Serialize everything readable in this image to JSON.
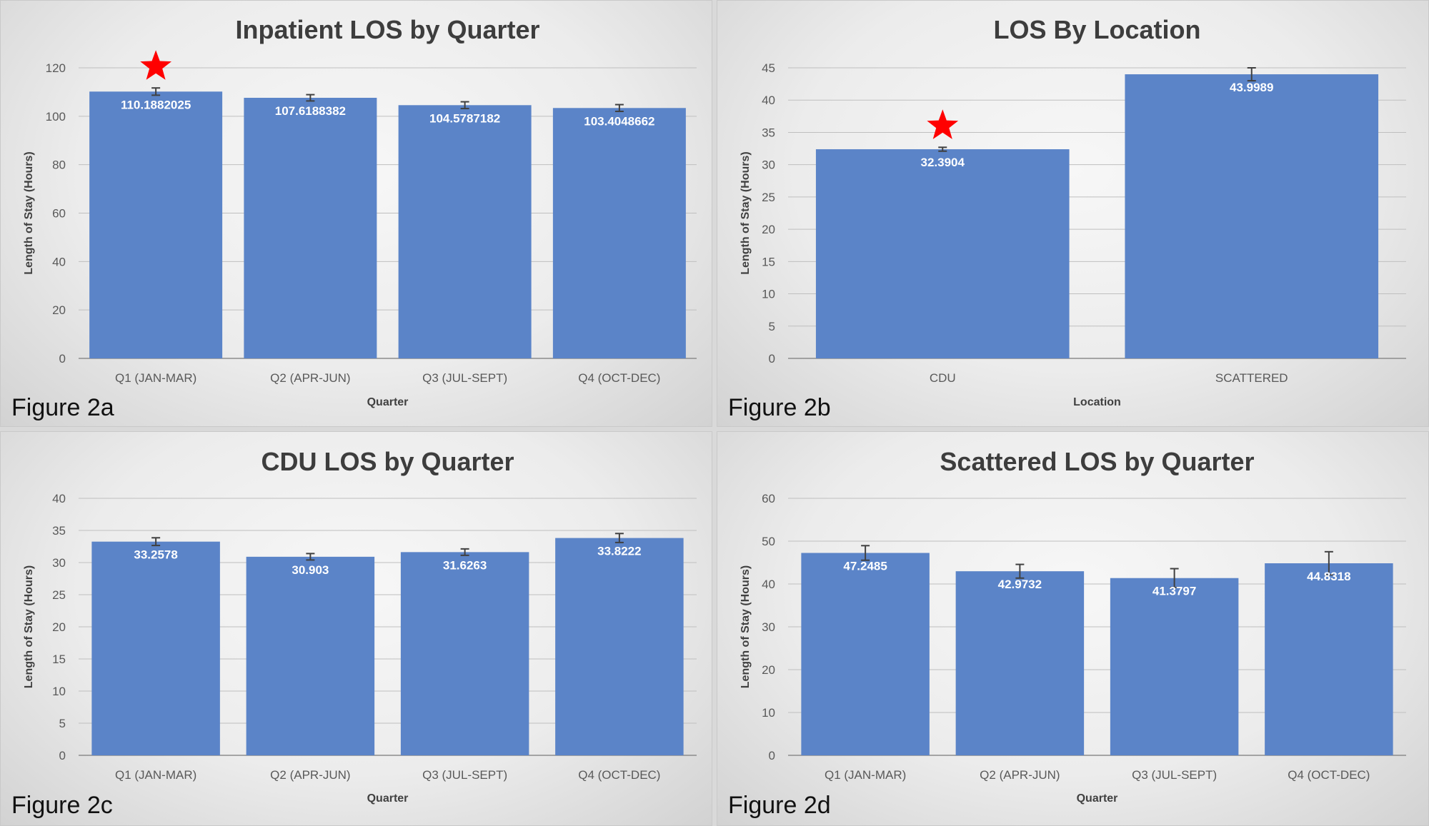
{
  "colors": {
    "bar": "#5b84c8",
    "star": "#ff0000",
    "background": "#ececec"
  },
  "chart_data": [
    {
      "type": "bar",
      "figure_label": "Figure 2a",
      "title": "Inpatient LOS by Quarter",
      "xlabel": "Quarter",
      "ylabel": "Length of Stay (Hours)",
      "ylim": [
        0,
        120
      ],
      "yticks": [
        "0",
        "20",
        "40",
        "60",
        "80",
        "100",
        "120"
      ],
      "categories": [
        "Q1 (JAN-MAR)",
        "Q2 (APR-JUN)",
        "Q3 (JUL-SEPT)",
        "Q4 (OCT-DEC)"
      ],
      "values": [
        110.1882025,
        107.6188382,
        104.5787182,
        103.4048662
      ],
      "data_labels": [
        "110.1882025",
        "107.6188382",
        "104.5787182",
        "103.4048662"
      ],
      "error": [
        1.5,
        1.3,
        1.4,
        1.4
      ],
      "highlight_star_index": 0,
      "grid": true,
      "legend": "none"
    },
    {
      "type": "bar",
      "figure_label": "Figure 2b",
      "title": "LOS By Location",
      "xlabel": "Location",
      "ylabel": "Length of Stay (Hours)",
      "ylim": [
        0,
        45
      ],
      "yticks": [
        "0",
        "5",
        "10",
        "15",
        "20",
        "25",
        "30",
        "35",
        "40",
        "45"
      ],
      "categories": [
        "CDU",
        "SCATTERED"
      ],
      "values": [
        32.3904,
        43.9989
      ],
      "data_labels": [
        "32.3904",
        "43.9989"
      ],
      "error": [
        0.3,
        1.0
      ],
      "highlight_star_index": 0,
      "grid": true,
      "legend": "none"
    },
    {
      "type": "bar",
      "figure_label": "Figure 2c",
      "title": "CDU LOS by Quarter",
      "xlabel": "Quarter",
      "ylabel": "Length of Stay (Hours)",
      "ylim": [
        0,
        40
      ],
      "yticks": [
        "0",
        "5",
        "10",
        "15",
        "20",
        "25",
        "30",
        "35",
        "40"
      ],
      "categories": [
        "Q1 (JAN-MAR)",
        "Q2 (APR-JUN)",
        "Q3 (JUL-SEPT)",
        "Q4 (OCT-DEC)"
      ],
      "values": [
        33.2578,
        30.903,
        31.6263,
        33.8222
      ],
      "data_labels": [
        "33.2578",
        "30.903",
        "31.6263",
        "33.8222"
      ],
      "error": [
        0.6,
        0.5,
        0.5,
        0.7
      ],
      "highlight_star_index": null,
      "grid": true,
      "legend": "none"
    },
    {
      "type": "bar",
      "figure_label": "Figure 2d",
      "title": "Scattered LOS by Quarter",
      "xlabel": "Quarter",
      "ylabel": "Length of Stay (Hours)",
      "ylim": [
        0,
        60
      ],
      "yticks": [
        "0",
        "10",
        "20",
        "30",
        "40",
        "50",
        "60"
      ],
      "categories": [
        "Q1 (JAN-MAR)",
        "Q2 (APR-JUN)",
        "Q3 (JUL-SEPT)",
        "Q4 (OCT-DEC)"
      ],
      "values": [
        47.2485,
        42.9732,
        41.3797,
        44.8318
      ],
      "data_labels": [
        "47.2485",
        "42.9732",
        "41.3797",
        "44.8318"
      ],
      "error": [
        1.7,
        1.6,
        2.2,
        2.7
      ],
      "highlight_star_index": null,
      "grid": true,
      "legend": "none"
    }
  ]
}
